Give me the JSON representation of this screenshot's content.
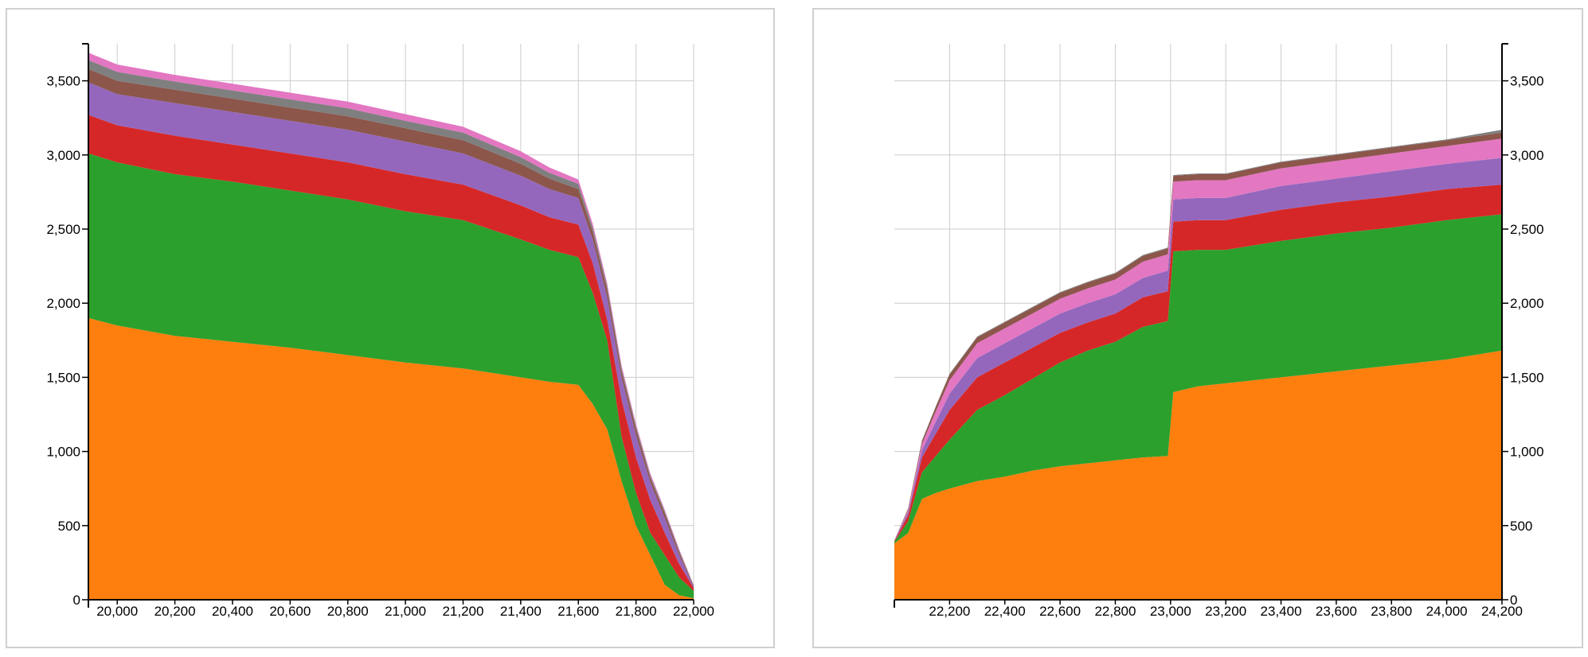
{
  "colors": {
    "orange": "#ff7f0e",
    "green": "#2ca02c",
    "red": "#d62728",
    "purple": "#9467bd",
    "brown": "#8c564b",
    "pink": "#e377c2",
    "gray": "#7f7f7f"
  },
  "chart_data": [
    {
      "type": "area",
      "stacked": true,
      "grid": true,
      "y_axis_side": "left",
      "xlim": [
        19900,
        22000
      ],
      "ylim": [
        0,
        3750
      ],
      "x_ticks": [
        "20,000",
        "20,200",
        "20,400",
        "20,600",
        "20,800",
        "21,000",
        "21,200",
        "21,400",
        "21,600",
        "21,800",
        "22,000"
      ],
      "y_ticks": [
        "0",
        "500",
        "1,000",
        "1,500",
        "2,000",
        "2,500",
        "3,000",
        "3,500"
      ],
      "x": [
        19900,
        20000,
        20200,
        20400,
        20600,
        20800,
        21000,
        21200,
        21400,
        21500,
        21600,
        21650,
        21700,
        21750,
        21800,
        21850,
        21900,
        21950,
        22000
      ],
      "series": [
        {
          "color": "orange",
          "values": [
            1900,
            1850,
            1780,
            1740,
            1700,
            1650,
            1600,
            1560,
            1500,
            1470,
            1450,
            1320,
            1150,
            800,
            500,
            300,
            100,
            30,
            10
          ]
        },
        {
          "color": "green",
          "values": [
            1110,
            1100,
            1090,
            1080,
            1060,
            1050,
            1020,
            1000,
            930,
            890,
            860,
            750,
            600,
            300,
            220,
            150,
            200,
            120,
            50
          ]
        },
        {
          "color": "red",
          "values": [
            260,
            250,
            260,
            250,
            250,
            250,
            250,
            240,
            230,
            220,
            220,
            200,
            140,
            250,
            240,
            220,
            150,
            90,
            20
          ]
        },
        {
          "color": "purple",
          "values": [
            220,
            210,
            220,
            220,
            220,
            220,
            220,
            210,
            200,
            190,
            180,
            160,
            150,
            150,
            150,
            120,
            100,
            60,
            10
          ]
        },
        {
          "color": "brown",
          "values": [
            90,
            90,
            90,
            90,
            90,
            90,
            90,
            90,
            80,
            70,
            60,
            50,
            50,
            40,
            40,
            30,
            30,
            20,
            5
          ]
        },
        {
          "color": "gray",
          "values": [
            60,
            60,
            55,
            55,
            55,
            55,
            50,
            50,
            45,
            40,
            35,
            30,
            25,
            20,
            20,
            15,
            15,
            10,
            3
          ]
        },
        {
          "color": "pink",
          "values": [
            50,
            50,
            45,
            45,
            45,
            45,
            45,
            40,
            40,
            35,
            30,
            25,
            20,
            20,
            15,
            15,
            10,
            10,
            2
          ]
        }
      ]
    },
    {
      "type": "area",
      "stacked": true,
      "grid": true,
      "y_axis_side": "right",
      "xlim": [
        22000,
        24200
      ],
      "ylim": [
        0,
        3750
      ],
      "x_ticks": [
        "22,200",
        "22,400",
        "22,600",
        "22,800",
        "23,000",
        "23,200",
        "23,400",
        "23,600",
        "23,800",
        "24,000",
        "24,200"
      ],
      "y_ticks": [
        "0",
        "500",
        "1,000",
        "1,500",
        "2,000",
        "2,500",
        "3,000",
        "3,500"
      ],
      "x": [
        22000,
        22050,
        22100,
        22150,
        22200,
        22300,
        22400,
        22500,
        22600,
        22700,
        22800,
        22900,
        22990,
        23010,
        23100,
        23200,
        23400,
        23600,
        23800,
        24000,
        24200
      ],
      "series": [
        {
          "color": "orange",
          "values": [
            380,
            450,
            680,
            720,
            750,
            800,
            830,
            870,
            900,
            920,
            940,
            960,
            970,
            1400,
            1440,
            1460,
            1500,
            1540,
            1580,
            1620,
            1680
          ]
        },
        {
          "color": "green",
          "values": [
            10,
            80,
            180,
            250,
            330,
            480,
            550,
            620,
            700,
            760,
            800,
            880,
            910,
            950,
            920,
            900,
            920,
            930,
            930,
            940,
            920
          ]
        },
        {
          "color": "red",
          "values": [
            5,
            40,
            100,
            150,
            200,
            220,
            220,
            210,
            200,
            190,
            190,
            200,
            200,
            200,
            200,
            200,
            210,
            210,
            210,
            210,
            200
          ]
        },
        {
          "color": "purple",
          "values": [
            3,
            20,
            50,
            80,
            110,
            130,
            130,
            130,
            130,
            130,
            130,
            130,
            140,
            150,
            150,
            150,
            160,
            160,
            170,
            170,
            180
          ]
        },
        {
          "color": "pink",
          "values": [
            2,
            15,
            40,
            70,
            90,
            100,
            100,
            100,
            100,
            100,
            100,
            110,
            110,
            120,
            120,
            120,
            120,
            120,
            120,
            120,
            130
          ]
        },
        {
          "color": "brown",
          "values": [
            1,
            10,
            20,
            30,
            40,
            40,
            40,
            40,
            40,
            40,
            40,
            40,
            40,
            40,
            40,
            40,
            40,
            40,
            40,
            40,
            40
          ]
        },
        {
          "color": "gray",
          "values": [
            0,
            2,
            5,
            5,
            5,
            5,
            5,
            5,
            5,
            5,
            5,
            5,
            5,
            5,
            5,
            5,
            5,
            5,
            5,
            5,
            20
          ]
        }
      ]
    }
  ]
}
